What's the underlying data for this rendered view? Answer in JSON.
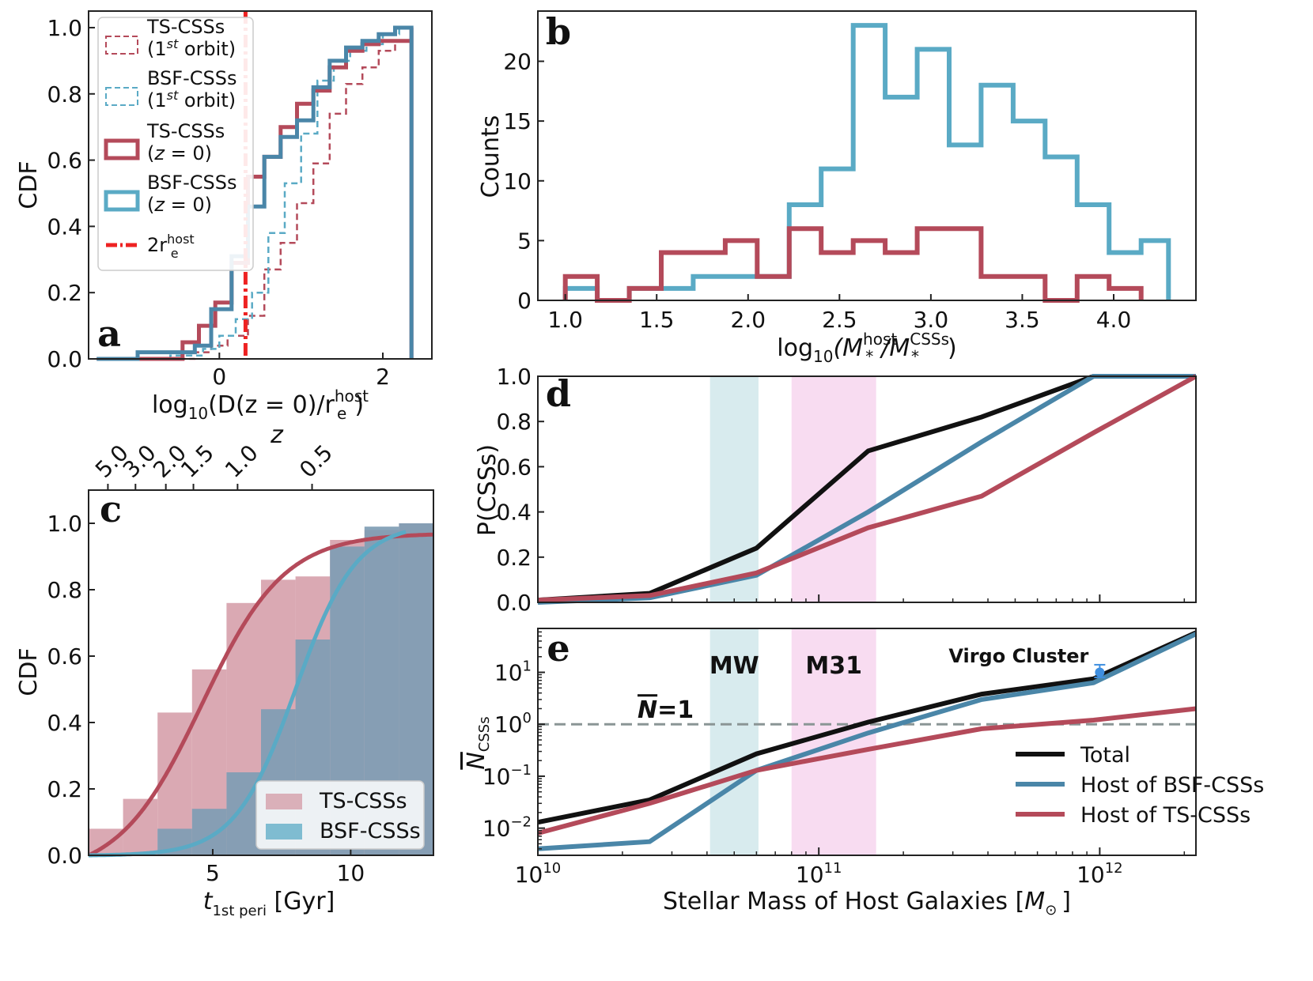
{
  "colors": {
    "ts": "#b44a5a",
    "bsf": "#5aaac5",
    "bsf_dark": "#4a86a8",
    "vline": "#ee2222",
    "total": "#111111",
    "ts_fill": "#d39aa6",
    "bsf_fill": "#7f9db4",
    "mw_band": "#d8ebee",
    "m31_band": "#f8dcf1",
    "nline": "#8a9595",
    "virgo": "#3f8fe0"
  },
  "chart_data": [
    {
      "panel": "a",
      "type": "line",
      "step": true,
      "ylabel": "CDF",
      "xlabel_parts": {
        "pre": "log",
        "sub": "10",
        "mid": "(D(z = 0)/r",
        "sup": "host",
        "sub2": "e",
        "post": ")"
      },
      "xlim": [
        -1.6,
        2.6
      ],
      "ylim": [
        0,
        1.05
      ],
      "xticks": [
        0,
        2
      ],
      "yticks": [
        0.0,
        0.2,
        0.4,
        0.6,
        0.8,
        1.0
      ],
      "vline": {
        "x": 0.32,
        "label": "2r_e^host"
      },
      "legend": [
        {
          "text": "TS-CSSs",
          "text2": "(1st orbit)",
          "style": "dashed",
          "color_key": "ts"
        },
        {
          "text": "BSF-CSSs",
          "text2": "(1st orbit)",
          "style": "dashed",
          "color_key": "bsf"
        },
        {
          "text": "TS-CSSs",
          "text2": "(z = 0)",
          "style": "box",
          "color_key": "ts"
        },
        {
          "text": "BSF-CSSs",
          "text2": "(z = 0)",
          "style": "box",
          "color_key": "bsf"
        },
        {
          "text": "2r",
          "sup": "host",
          "sub": "e",
          "style": "dashdot",
          "color_key": "vline"
        }
      ],
      "series": [
        {
          "name": "TS-CSSs (1st orbit)",
          "style": "dashed",
          "color_key": "ts",
          "width": 2.5,
          "x": [
            -1.5,
            -0.7,
            -0.3,
            -0.1,
            0.1,
            0.35,
            0.55,
            0.75,
            0.95,
            1.15,
            1.35,
            1.55,
            1.75,
            1.95,
            2.15,
            2.35,
            2.35
          ],
          "y": [
            0.0,
            0.0,
            0.02,
            0.04,
            0.07,
            0.13,
            0.27,
            0.35,
            0.47,
            0.59,
            0.74,
            0.83,
            0.88,
            0.93,
            0.96,
            1.0,
            0.0
          ]
        },
        {
          "name": "BSF-CSSs (1st orbit)",
          "style": "dashed",
          "color_key": "bsf",
          "width": 2.5,
          "x": [
            -1.5,
            -0.6,
            -0.2,
            0.0,
            0.2,
            0.4,
            0.6,
            0.8,
            1.0,
            1.2,
            1.4,
            1.6,
            1.8,
            2.0,
            2.2,
            2.35,
            2.35
          ],
          "y": [
            0.0,
            0.01,
            0.03,
            0.07,
            0.12,
            0.2,
            0.38,
            0.53,
            0.68,
            0.84,
            0.9,
            0.93,
            0.95,
            0.98,
            1.0,
            1.0,
            0.0
          ]
        },
        {
          "name": "TS-CSSs (z = 0)",
          "style": "solid",
          "color_key": "ts",
          "width": 5,
          "x": [
            -1.5,
            -0.7,
            -0.45,
            -0.25,
            -0.05,
            0.15,
            0.35,
            0.55,
            0.75,
            0.95,
            1.15,
            1.35,
            1.55,
            1.75,
            1.95,
            2.35,
            2.35
          ],
          "y": [
            0.0,
            0.0,
            0.05,
            0.1,
            0.17,
            0.29,
            0.55,
            0.61,
            0.7,
            0.77,
            0.81,
            0.88,
            0.93,
            0.95,
            0.96,
            1.0,
            0.0
          ]
        },
        {
          "name": "BSF-CSSs (z = 0)",
          "style": "solid",
          "color_key": "bsf_dark",
          "width": 5,
          "x": [
            -1.5,
            -1.0,
            -0.6,
            -0.3,
            -0.1,
            0.15,
            0.35,
            0.55,
            0.75,
            0.95,
            1.15,
            1.35,
            1.55,
            1.75,
            1.95,
            2.15,
            2.35,
            2.35
          ],
          "y": [
            0.0,
            0.02,
            0.02,
            0.04,
            0.15,
            0.31,
            0.46,
            0.61,
            0.67,
            0.72,
            0.82,
            0.9,
            0.94,
            0.96,
            0.98,
            1.0,
            1.0,
            0.0
          ]
        }
      ]
    },
    {
      "panel": "b",
      "type": "bar",
      "step": true,
      "ylabel": "Counts",
      "xlabel_parts": {
        "pre": "log",
        "sub": "10",
        "mid": "(M",
        "sup": "host",
        "sub2": "*",
        "slash": "/M",
        "sup3": "CSSs",
        "sub3": "*",
        "post": ")"
      },
      "xlim": [
        0.85,
        4.45
      ],
      "ylim": [
        0,
        24.2
      ],
      "xticks": [
        1.0,
        1.5,
        2.0,
        2.5,
        3.0,
        3.5,
        4.0
      ],
      "yticks": [
        0,
        5,
        10,
        15,
        20
      ],
      "series": [
        {
          "name": "BSF-CSSs",
          "color_key": "bsf",
          "edges": [
            1.0,
            1.175,
            1.35,
            1.525,
            1.7,
            1.875,
            2.05,
            2.225,
            2.4,
            2.575,
            2.75,
            2.925,
            3.1,
            3.275,
            3.45,
            3.625,
            3.8,
            3.975,
            4.15,
            4.3
          ],
          "counts": [
            1,
            0,
            1,
            1,
            2,
            2,
            2,
            8,
            11,
            23,
            17,
            21,
            13,
            18,
            15,
            12,
            8,
            4,
            5
          ]
        },
        {
          "name": "TS-CSSs",
          "color_key": "ts",
          "edges": [
            1.0,
            1.175,
            1.35,
            1.525,
            1.7,
            1.875,
            2.05,
            2.225,
            2.4,
            2.575,
            2.75,
            2.925,
            3.1,
            3.275,
            3.45,
            3.625,
            3.8,
            3.975,
            4.15
          ],
          "counts": [
            2,
            0,
            1,
            4,
            4,
            5,
            2,
            6,
            4,
            5,
            4,
            6,
            6,
            2,
            2,
            0,
            2,
            1
          ]
        }
      ]
    },
    {
      "panel": "c",
      "type": "area",
      "ylabel": "CDF",
      "xlabel_parts": {
        "pre": "t",
        "sub": "1st peri",
        "post": " [Gyr]"
      },
      "top_axis_label": "z",
      "top_ticks": [
        {
          "label": "5.0",
          "t": 1.2
        },
        {
          "label": "3.0",
          "t": 2.2
        },
        {
          "label": "2.0",
          "t": 3.3
        },
        {
          "label": "1.5",
          "t": 4.3
        },
        {
          "label": "1.0",
          "t": 5.9
        },
        {
          "label": "0.5",
          "t": 8.6
        }
      ],
      "xlim": [
        0.5,
        13.0
      ],
      "ylim": [
        0,
        1.1
      ],
      "xticks": [
        5,
        10
      ],
      "yticks": [
        0.0,
        0.2,
        0.4,
        0.6,
        0.8,
        1.0
      ],
      "legend": [
        {
          "text": "TS-CSSs",
          "color_key": "ts_fill"
        },
        {
          "text": "BSF-CSSs",
          "color_key": "bsf"
        }
      ],
      "series": [
        {
          "name": "TS-CSSs",
          "color_key": "ts_fill",
          "edges": [
            0.5,
            1.75,
            3.0,
            4.25,
            5.5,
            6.75,
            8.0,
            9.25,
            10.5,
            11.75,
            13.0
          ],
          "cdf": [
            0.08,
            0.17,
            0.43,
            0.56,
            0.76,
            0.83,
            0.84,
            0.95,
            0.98,
            1.0
          ]
        },
        {
          "name": "BSF-CSSs",
          "color_key": "bsf_fill",
          "edges": [
            0.5,
            1.75,
            3.0,
            4.25,
            5.5,
            6.75,
            8.0,
            9.25,
            10.5,
            11.75,
            13.0
          ],
          "cdf": [
            0.0,
            0.0,
            0.08,
            0.14,
            0.25,
            0.44,
            0.65,
            0.93,
            0.99,
            1.0
          ]
        }
      ],
      "curves": [
        {
          "name": "TS-CSSs fit",
          "color_key": "ts",
          "kind": "logistic",
          "mid": 4.6,
          "scale": 1.5,
          "max": 0.97
        },
        {
          "name": "BSF-CSSs fit",
          "color_key": "bsf",
          "kind": "logistic",
          "mid": 8.0,
          "scale": 1.1,
          "max": 1.0,
          "t_end": 12.0
        }
      ]
    },
    {
      "panel": "d",
      "type": "line",
      "ylabel": "P(CSSs)",
      "xscale": "log",
      "xlim": [
        10000000000.0,
        2200000000000.0
      ],
      "ylim": [
        0,
        1.0
      ],
      "yticks": [
        0.0,
        0.2,
        0.4,
        0.6,
        0.8,
        1.0
      ],
      "bands": [
        {
          "name": "MW",
          "x0": 41000000000.0,
          "x1": 61000000000.0,
          "color_key": "mw_band"
        },
        {
          "name": "M31",
          "x0": 80000000000.0,
          "x1": 160000000000.0,
          "color_key": "m31_band"
        }
      ],
      "series": [
        {
          "name": "Total",
          "color_key": "total",
          "x": [
            10000000000.0,
            25000000000.0,
            60000000000.0,
            150000000000.0,
            380000000000.0,
            950000000000.0,
            2200000000000.0
          ],
          "y": [
            0.01,
            0.04,
            0.24,
            0.67,
            0.82,
            1.0,
            1.0
          ]
        },
        {
          "name": "Host of BSF-CSSs",
          "color_key": "bsf_dark",
          "x": [
            10000000000.0,
            25000000000.0,
            60000000000.0,
            150000000000.0,
            380000000000.0,
            950000000000.0,
            2200000000000.0
          ],
          "y": [
            0.0,
            0.02,
            0.12,
            0.4,
            0.71,
            1.0,
            1.0
          ]
        },
        {
          "name": "Host of TS-CSSs",
          "color_key": "ts",
          "x": [
            10000000000.0,
            25000000000.0,
            60000000000.0,
            150000000000.0,
            380000000000.0,
            950000000000.0,
            2200000000000.0
          ],
          "y": [
            0.01,
            0.03,
            0.13,
            0.33,
            0.47,
            0.75,
            1.0
          ]
        }
      ]
    },
    {
      "panel": "e",
      "type": "line",
      "ylabel": "N̄ CSSs",
      "ylabel_main": "N",
      "ylabel_sub": "CSSs",
      "xlabel": "Stellar Mass of Host Galaxies [M☉]",
      "xlabel_main": "Stellar Mass of Host Galaxies [",
      "xlabel_sym": "M",
      "xlabel_sub": "⊙",
      "xlabel_end": "]",
      "xscale": "log",
      "yscale": "log",
      "xlim": [
        10000000000.0,
        2200000000000.0
      ],
      "ylim": [
        0.003,
        70
      ],
      "xticks": [
        {
          "value": 10000000000.0,
          "base": "10",
          "exp": "10"
        },
        {
          "value": 100000000000.0,
          "base": "10",
          "exp": "11"
        },
        {
          "value": 1000000000000.0,
          "base": "10",
          "exp": "12"
        }
      ],
      "yticks": [
        {
          "value": 0.01,
          "base": "10",
          "exp": "−2"
        },
        {
          "value": 0.1,
          "base": "10",
          "exp": "−1"
        },
        {
          "value": 1,
          "base": "10",
          "exp": "0"
        },
        {
          "value": 10,
          "base": "10",
          "exp": "1"
        }
      ],
      "bands": [
        {
          "name": "MW",
          "x0": 41000000000.0,
          "x1": 61000000000.0,
          "color_key": "mw_band",
          "label": "MW",
          "label_color": "#7fe0dd"
        },
        {
          "name": "M31",
          "x0": 80000000000.0,
          "x1": 160000000000.0,
          "color_key": "m31_band",
          "label": "M31",
          "label_color": "#f06ce0"
        }
      ],
      "hline": {
        "y": 1,
        "label": "N̄=1",
        "label_main": "N",
        "label_post": "=1"
      },
      "annotation": {
        "text": "Virgo Cluster",
        "x": 1000000000000.0,
        "y": 10,
        "yerr_low": 8,
        "yerr_high": 14
      },
      "legend": [
        {
          "text": "Total",
          "color_key": "total"
        },
        {
          "text": "Host of BSF-CSSs",
          "color_key": "bsf_dark"
        },
        {
          "text": "Host of TS-CSSs",
          "color_key": "ts"
        }
      ],
      "series": [
        {
          "name": "Total",
          "color_key": "total",
          "x": [
            10000000000.0,
            25000000000.0,
            60000000000.0,
            150000000000.0,
            380000000000.0,
            950000000000.0,
            2200000000000.0
          ],
          "y": [
            0.013,
            0.035,
            0.27,
            1.1,
            3.8,
            7.5,
            58
          ]
        },
        {
          "name": "Host of BSF-CSSs",
          "color_key": "bsf_dark",
          "x": [
            10000000000.0,
            25000000000.0,
            60000000000.0,
            150000000000.0,
            380000000000.0,
            950000000000.0,
            2200000000000.0
          ],
          "y": [
            0.004,
            0.0055,
            0.13,
            0.68,
            3.0,
            6.3,
            55
          ]
        },
        {
          "name": "Host of TS-CSSs",
          "color_key": "ts",
          "x": [
            10000000000.0,
            25000000000.0,
            60000000000.0,
            150000000000.0,
            380000000000.0,
            950000000000.0,
            2200000000000.0
          ],
          "y": [
            0.008,
            0.03,
            0.13,
            0.33,
            0.82,
            1.2,
            2.0
          ]
        }
      ]
    }
  ]
}
